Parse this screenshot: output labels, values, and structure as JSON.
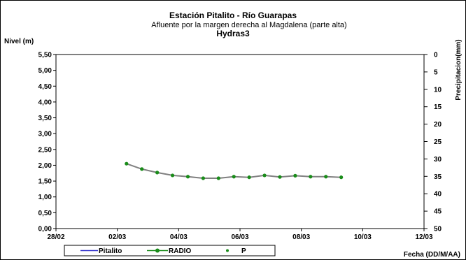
{
  "chart_data": {
    "type": "line",
    "title": "Estación Pitalito  - Río Guarapas",
    "subtitle": "Afluente por la margen derecha al Magdalena (parte alta)",
    "subtitle2": "Hydras3",
    "ylabel": "Nivel (m)",
    "y2label": "Precipitacion(mm)",
    "xlabel": "Fecha (DD/M/AA)",
    "x_ticks": [
      "28/02",
      "02/03",
      "04/03",
      "06/03",
      "08/03",
      "10/03",
      "12/03"
    ],
    "x_range_days": [
      0,
      12
    ],
    "ylim": [
      0,
      5.5
    ],
    "y_ticks": [
      "0,00",
      "0,50",
      "1,00",
      "1,50",
      "2,00",
      "2,50",
      "3,00",
      "3,50",
      "4,00",
      "4,50",
      "5,00",
      "5,50"
    ],
    "y2lim": [
      0,
      50
    ],
    "y2_reversed": true,
    "y2_ticks": [
      "0",
      "5",
      "10",
      "15",
      "20",
      "25",
      "30",
      "35",
      "40",
      "45",
      "50"
    ],
    "grid": false,
    "legend_position": "bottom",
    "series": [
      {
        "name": "Pitalito",
        "color": "#3333cc",
        "style": "line",
        "x": [],
        "y": []
      },
      {
        "name": "RADIO",
        "color": "#808080",
        "marker_color": "#1a8c1a",
        "style": "line-marker",
        "x": [
          2.3,
          2.8,
          3.3,
          3.8,
          4.3,
          4.8,
          5.3,
          5.8,
          6.3,
          6.8,
          7.3,
          7.8,
          8.3,
          8.8,
          9.3
        ],
        "y": [
          2.05,
          1.88,
          1.77,
          1.68,
          1.64,
          1.59,
          1.59,
          1.64,
          1.62,
          1.68,
          1.63,
          1.67,
          1.64,
          1.64,
          1.62
        ]
      },
      {
        "name": "P",
        "color": "#1a8c1a",
        "style": "marker",
        "x": [],
        "y": []
      }
    ]
  }
}
